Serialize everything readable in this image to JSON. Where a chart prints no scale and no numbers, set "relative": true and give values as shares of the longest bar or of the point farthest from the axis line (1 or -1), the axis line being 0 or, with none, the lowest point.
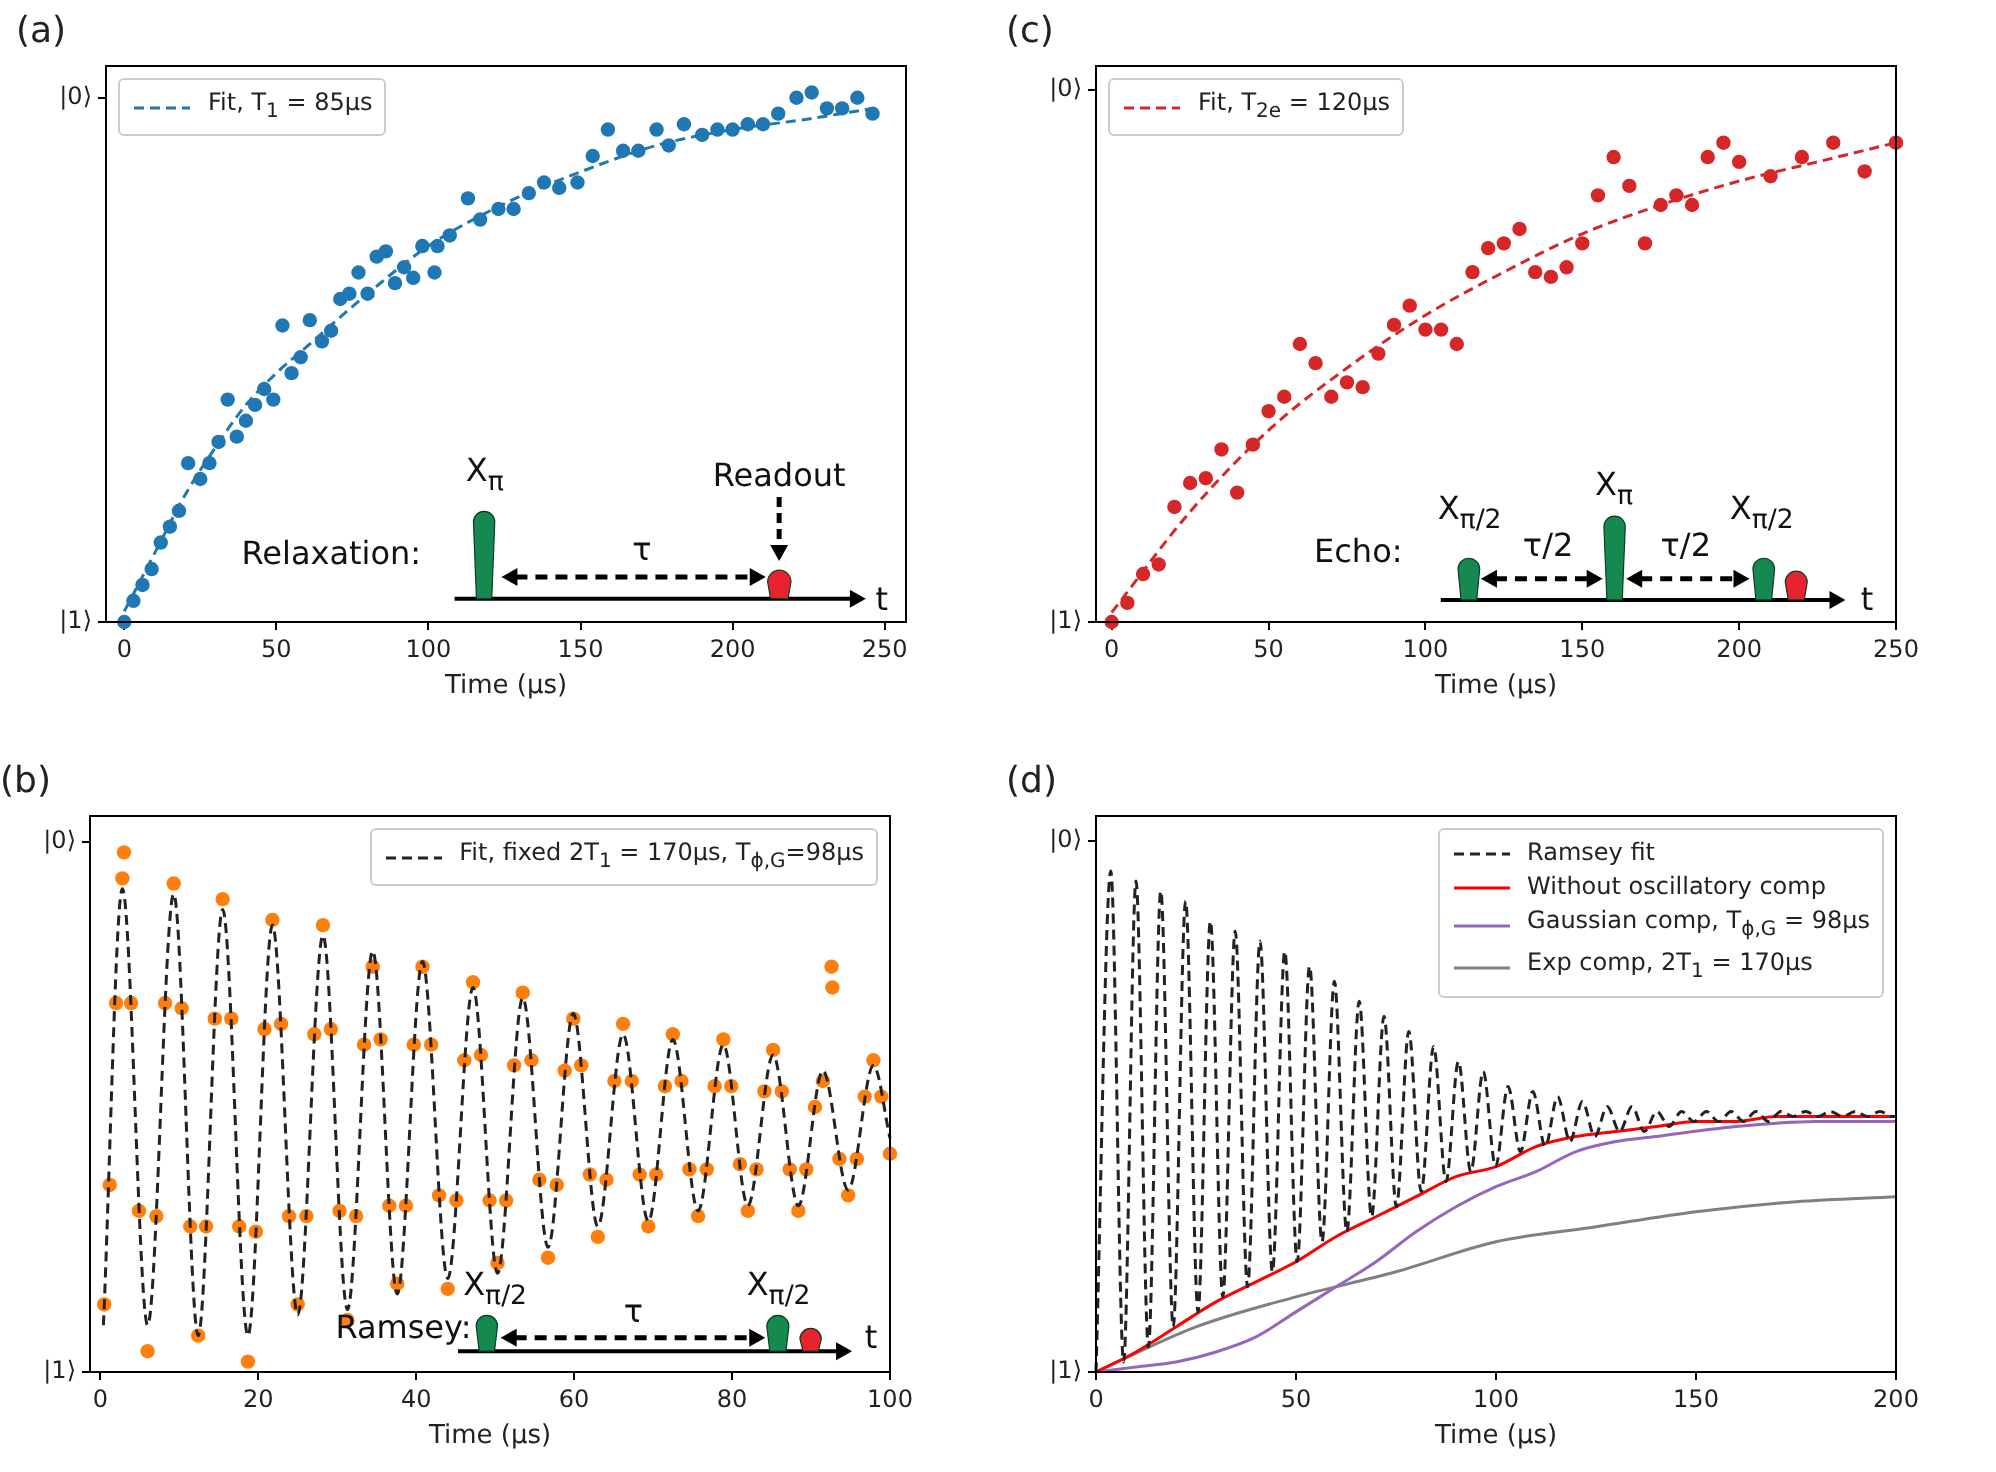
{
  "chart_data": [
    {
      "type": "scatter",
      "title": "(a)",
      "xlabel": "Time (μs)",
      "xlim": [
        -6,
        257
      ],
      "xticks": [
        0,
        50,
        100,
        150,
        200,
        250
      ],
      "relative": true,
      "legend": "top left",
      "annotations": [
        "|1⟩",
        "|0⟩",
        "Relaxation:",
        "X$_{π}$",
        "τ",
        "Readout",
        "t"
      ],
      "series": [
        {
          "marker": "circle",
          "color": "#1f77b4",
          "x": [
            0,
            3,
            6,
            9,
            12,
            15,
            18,
            21,
            25,
            28,
            31,
            34,
            37,
            40,
            43,
            46,
            49,
            52,
            55,
            58,
            61,
            65,
            68,
            71,
            74,
            77,
            80,
            83,
            86,
            89,
            92,
            95,
            98,
            102,
            103,
            107,
            113,
            117,
            123,
            128,
            133,
            138,
            143,
            149,
            154,
            159,
            164,
            169,
            175,
            179,
            184,
            190,
            195,
            200,
            205,
            210,
            215,
            221,
            226,
            231,
            236,
            241,
            246
          ],
          "values": [
            0,
            0.04,
            0.07,
            0.1,
            0.15,
            0.18,
            0.21,
            0.3,
            0.27,
            0.3,
            0.34,
            0.42,
            0.35,
            0.38,
            0.41,
            0.44,
            0.42,
            0.56,
            0.47,
            0.5,
            0.57,
            0.53,
            0.55,
            0.61,
            0.62,
            0.66,
            0.62,
            0.69,
            0.7,
            0.64,
            0.67,
            0.65,
            0.71,
            0.66,
            0.71,
            0.73,
            0.8,
            0.76,
            0.78,
            0.78,
            0.81,
            0.83,
            0.82,
            0.83,
            0.88,
            0.93,
            0.89,
            0.89,
            0.93,
            0.9,
            0.94,
            0.92,
            0.93,
            0.93,
            0.94,
            0.94,
            0.96,
            0.99,
            1,
            0.97,
            0.97,
            0.99,
            0.96
          ]
        },
        {
          "type": "line",
          "name": "Fit, T$_{1}$ = 85μs",
          "color": "#1f77b4",
          "line_style": "dashed",
          "x": [
            0,
            10,
            20,
            30,
            40,
            50,
            60,
            80,
            100,
            125,
            150,
            175,
            200,
            225,
            246
          ],
          "values": [
            0.02,
            0.13,
            0.24,
            0.33,
            0.41,
            0.47,
            0.52,
            0.62,
            0.71,
            0.79,
            0.85,
            0.9,
            0.93,
            0.95,
            0.97
          ]
        }
      ]
    },
    {
      "type": "scatter",
      "title": "(c)",
      "xlabel": "Time (μs)",
      "xlim": [
        -5,
        250
      ],
      "xticks": [
        0,
        50,
        100,
        150,
        200,
        250
      ],
      "relative": true,
      "legend": "top left",
      "annotations": [
        "|1⟩",
        "|0⟩",
        "Echo:",
        "X$_{π/2}$",
        "τ/2",
        "X$_{π}$",
        "τ/2",
        "X$_{π/2}$",
        "t"
      ],
      "series": [
        {
          "marker": "circle",
          "color": "#d62728",
          "x": [
            0,
            5,
            10,
            15,
            20,
            25,
            30,
            35,
            40,
            45,
            50,
            55,
            60,
            65,
            70,
            75,
            80,
            85,
            90,
            95,
            100,
            105,
            110,
            115,
            120,
            125,
            130,
            135,
            140,
            145,
            150,
            155,
            160,
            165,
            170,
            175,
            180,
            185,
            190,
            195,
            200,
            210,
            220,
            230,
            240,
            250
          ],
          "values": [
            0,
            0.04,
            0.1,
            0.12,
            0.24,
            0.29,
            0.3,
            0.36,
            0.27,
            0.37,
            0.44,
            0.47,
            0.58,
            0.54,
            0.47,
            0.5,
            0.49,
            0.56,
            0.62,
            0.66,
            0.61,
            0.61,
            0.58,
            0.73,
            0.78,
            0.79,
            0.82,
            0.73,
            0.72,
            0.74,
            0.79,
            0.89,
            0.97,
            0.91,
            0.79,
            0.87,
            0.89,
            0.87,
            0.97,
            1,
            0.96,
            0.93,
            0.97,
            1,
            0.94,
            1
          ]
        },
        {
          "type": "line",
          "name": "Fit, T$_{2e}$ = 120μs",
          "color": "#d62728",
          "line_style": "dashed",
          "x": [
            0,
            25,
            50,
            75,
            100,
            125,
            150,
            175,
            200,
            225,
            250
          ],
          "values": [
            0.02,
            0.23,
            0.4,
            0.53,
            0.64,
            0.73,
            0.81,
            0.87,
            0.92,
            0.96,
            1
          ]
        }
      ]
    },
    {
      "type": "scatter",
      "title": "(b)",
      "xlabel": "Time (μs)",
      "xlim": [
        -1.3,
        100
      ],
      "xticks": [
        0,
        20,
        40,
        60,
        80,
        100
      ],
      "relative": true,
      "legend": "top right",
      "annotations": [
        "|1⟩",
        "|0⟩",
        "Ramsey:",
        "X$_{π/2}$",
        "τ",
        "X$_{π/2}$",
        "t"
      ],
      "series": [
        {
          "marker": "circle",
          "color": "#ff7f0e",
          "x": [
            0.5,
            1.2,
            2.0,
            2.8,
            3.0,
            3.9,
            4.9,
            6.0,
            7.1,
            8.2,
            9.3,
            10.3,
            11.4,
            12.4,
            13.4,
            14.5,
            15.5,
            16.6,
            17.6,
            18.7,
            19.7,
            20.8,
            21.8,
            22.9,
            23.9,
            25.0,
            26.1,
            27.1,
            28.2,
            29.2,
            30.3,
            31.3,
            32.4,
            33.4,
            34.5,
            35.5,
            36.6,
            37.6,
            38.7,
            39.7,
            40.8,
            41.9,
            42.9,
            44.0,
            45.1,
            46.1,
            47.2,
            48.2,
            49.3,
            50.3,
            51.4,
            52.4,
            53.5,
            54.6,
            55.6,
            56.7,
            57.8,
            58.8,
            59.9,
            60.9,
            62.0,
            63.0,
            64.1,
            65.1,
            66.2,
            67.3,
            68.3,
            69.4,
            70.4,
            71.5,
            72.5,
            73.6,
            74.6,
            75.7,
            76.8,
            77.8,
            78.9,
            79.9,
            81.0,
            82.0,
            83.1,
            84.1,
            85.2,
            86.3,
            87.3,
            88.4,
            89.4,
            90.5,
            91.5,
            92.6,
            92.7,
            93.6,
            94.7,
            95.8,
            96.8,
            97.9,
            98.9,
            100
          ],
          "values": [
            0.13,
            0.36,
            0.71,
            0.95,
            1,
            0.71,
            0.31,
            0.04,
            0.3,
            0.71,
            0.94,
            0.7,
            0.28,
            0.07,
            0.28,
            0.68,
            0.91,
            0.68,
            0.28,
            0.02,
            0.27,
            0.66,
            0.87,
            0.67,
            0.3,
            0.13,
            0.3,
            0.65,
            0.86,
            0.66,
            0.31,
            0.1,
            0.3,
            0.63,
            0.78,
            0.64,
            0.32,
            0.17,
            0.32,
            0.63,
            0.78,
            0.63,
            0.34,
            0.16,
            0.33,
            0.6,
            0.75,
            0.61,
            0.33,
            0.21,
            0.33,
            0.59,
            0.73,
            0.6,
            0.37,
            0.22,
            0.36,
            0.58,
            0.68,
            0.59,
            0.38,
            0.26,
            0.37,
            0.56,
            0.67,
            0.56,
            0.38,
            0.28,
            0.38,
            0.55,
            0.65,
            0.56,
            0.39,
            0.3,
            0.39,
            0.55,
            0.64,
            0.55,
            0.4,
            0.31,
            0.39,
            0.54,
            0.62,
            0.54,
            0.39,
            0.31,
            0.39,
            0.51,
            0.56,
            0.78,
            0.74,
            0.41,
            0.34,
            0.41,
            0.53,
            0.6,
            0.53,
            0.42
          ]
        },
        {
          "type": "line",
          "name": "Fit, fixed 2T$_{1}$ = 170μs, T$_{ϕ,G}$=98μs",
          "color": "#222222",
          "line_style": "dashed",
          "x": [
            0.4,
            2.8,
            6.0,
            9.3,
            12.4,
            15.5,
            18.7,
            21.8,
            25.0,
            28.2,
            31.3,
            34.5,
            37.6,
            40.8,
            44.0,
            47.2,
            50.3,
            53.5,
            56.7,
            59.9,
            63.0,
            66.2,
            69.4,
            72.5,
            75.7,
            78.9,
            82.0,
            85.2,
            88.4,
            91.5,
            94.7,
            97.9,
            100
          ],
          "values": [
            0.09,
            0.93,
            0.09,
            0.92,
            0.07,
            0.89,
            0.07,
            0.86,
            0.11,
            0.84,
            0.12,
            0.81,
            0.15,
            0.79,
            0.18,
            0.74,
            0.19,
            0.72,
            0.24,
            0.69,
            0.28,
            0.65,
            0.29,
            0.64,
            0.31,
            0.63,
            0.32,
            0.61,
            0.32,
            0.58,
            0.35,
            0.59,
            0.45
          ]
        }
      ]
    },
    {
      "type": "line",
      "title": "(d)",
      "xlabel": "Time (μs)",
      "xlim": [
        0,
        200
      ],
      "xticks": [
        0,
        50,
        100,
        150,
        200
      ],
      "relative": true,
      "legend": "top right",
      "annotations": [
        "|1⟩",
        "|0⟩"
      ],
      "series": [
        {
          "name": "Ramsey fit",
          "color": "#222222",
          "line_style": "dashed",
          "x": [
            0,
            3.7,
            6.9,
            10.0,
            13.1,
            16.2,
            19.3,
            22.4,
            25.5,
            28.6,
            31.7,
            34.8,
            37.9,
            41.0,
            44.1,
            47.2,
            50.3,
            53.4,
            56.5,
            59.6,
            62.7,
            65.8,
            68.9,
            72.0,
            75.1,
            78.2,
            81.3,
            84.4,
            87.5,
            90.6,
            93.7,
            96.8,
            99.9,
            103.0,
            106.1,
            109.2,
            112.3,
            115.4,
            118.5,
            121.6,
            124.7,
            127.8,
            130.9,
            134.0,
            137.1,
            140.2,
            143.3,
            146.4,
            149.5,
            152.6,
            155.7,
            158.8,
            161.9,
            165.0,
            168.1,
            171.2,
            174.3,
            177.4,
            180.5,
            183.6,
            186.7,
            189.8,
            192.9,
            196.0,
            199.1,
            200
          ],
          "values": [
            0,
            1,
            0.02,
            0.98,
            0.05,
            0.96,
            0.09,
            0.94,
            0.12,
            0.9,
            0.15,
            0.88,
            0.17,
            0.86,
            0.2,
            0.84,
            0.22,
            0.81,
            0.26,
            0.78,
            0.28,
            0.74,
            0.31,
            0.71,
            0.33,
            0.68,
            0.36,
            0.65,
            0.38,
            0.62,
            0.4,
            0.6,
            0.41,
            0.57,
            0.44,
            0.56,
            0.45,
            0.55,
            0.46,
            0.54,
            0.47,
            0.53,
            0.48,
            0.53,
            0.48,
            0.52,
            0.49,
            0.52,
            0.5,
            0.52,
            0.5,
            0.52,
            0.5,
            0.52,
            0.5,
            0.52,
            0.51,
            0.52,
            0.51,
            0.52,
            0.51,
            0.52,
            0.51,
            0.52,
            0.51,
            0.51
          ]
        },
        {
          "name": "Without oscillatory comp",
          "color": "#ff0000",
          "line_style": "solid",
          "x": [
            0,
            10,
            20,
            30,
            40,
            50,
            60,
            70,
            80,
            90,
            100,
            110,
            120,
            130,
            140,
            150,
            160,
            170,
            180,
            200
          ],
          "values": [
            0,
            0.04,
            0.09,
            0.14,
            0.18,
            0.22,
            0.27,
            0.31,
            0.35,
            0.39,
            0.41,
            0.45,
            0.47,
            0.48,
            0.49,
            0.5,
            0.5,
            0.51,
            0.51,
            0.51
          ]
        },
        {
          "name": "Gaussian comp, T$_{ϕ,G}$ = 98μs",
          "color": "#9467bd",
          "line_style": "solid",
          "x": [
            0,
            10,
            20,
            30,
            40,
            50,
            60,
            70,
            80,
            90,
            100,
            110,
            120,
            130,
            140,
            160,
            180,
            200
          ],
          "values": [
            0,
            0.01,
            0.02,
            0.04,
            0.07,
            0.12,
            0.17,
            0.22,
            0.28,
            0.33,
            0.37,
            0.4,
            0.44,
            0.46,
            0.47,
            0.49,
            0.5,
            0.5
          ]
        },
        {
          "name": "Exp comp, 2T$_{1}$ = 170μs",
          "color": "#808080",
          "line_style": "solid",
          "x": [
            0,
            25,
            50,
            75,
            100,
            125,
            150,
            175,
            200
          ],
          "values": [
            0,
            0.09,
            0.15,
            0.2,
            0.26,
            0.29,
            0.32,
            0.34,
            0.35
          ]
        }
      ]
    }
  ]
}
